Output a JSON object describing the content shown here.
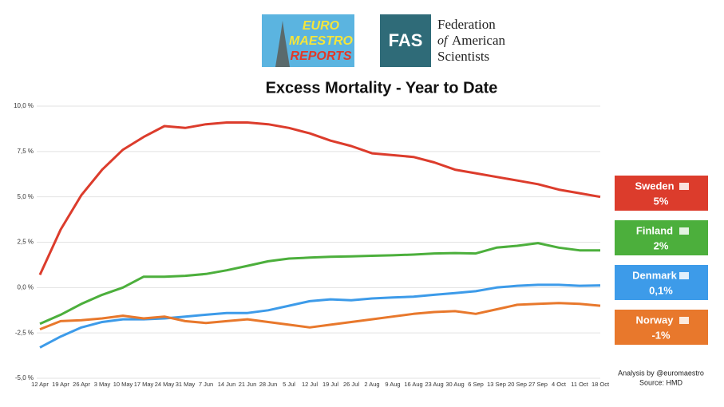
{
  "header": {
    "logo_left": [
      "EURO",
      "MAESTRO",
      "REPORTS"
    ],
    "logo_right_abbr": "FAS",
    "logo_right_name": [
      "Federation",
      "of",
      "American",
      "Scientists"
    ]
  },
  "chart_data": {
    "type": "line",
    "title": "Excess Mortality - Year to Date",
    "categories": [
      "12 Apr",
      "19 Apr",
      "26 Apr",
      "3 May",
      "10 May",
      "17 May",
      "24 May",
      "31 May",
      "7 Jun",
      "14 Jun",
      "21 Jun",
      "28 Jun",
      "5 Jul",
      "12 Jul",
      "19 Jul",
      "26 Jul",
      "2 Aug",
      "9 Aug",
      "16 Aug",
      "23 Aug",
      "30 Aug",
      "6 Sep",
      "13 Sep",
      "20 Sep",
      "27 Sep",
      "4 Oct",
      "11 Oct",
      "18 Oct"
    ],
    "ylim": [
      -5,
      10
    ],
    "yticks": [
      {
        "value": -5,
        "label": "-5,0 %"
      },
      {
        "value": -2.5,
        "label": "-2,5 %"
      },
      {
        "value": 0,
        "label": "0,0 %"
      },
      {
        "value": 2.5,
        "label": "2,5 %"
      },
      {
        "value": 5,
        "label": "5,0 %"
      },
      {
        "value": 7.5,
        "label": "7,5 %"
      },
      {
        "value": 10,
        "label": "10,0 %"
      }
    ],
    "grid": true,
    "series": [
      {
        "name": "Sweden",
        "color": "#dc3c2c",
        "values": [
          0.7,
          3.2,
          5.1,
          6.5,
          7.6,
          8.3,
          8.9,
          8.8,
          9.0,
          9.1,
          9.1,
          9.0,
          8.8,
          8.5,
          8.1,
          7.8,
          7.4,
          7.3,
          7.2,
          6.9,
          6.5,
          6.3,
          6.1,
          5.9,
          5.7,
          5.4,
          5.2,
          5.0
        ],
        "value_labels": [
          null,
          null,
          null,
          null,
          null,
          null,
          null,
          null,
          null,
          null,
          null,
          null,
          null,
          null,
          null,
          null,
          null,
          null,
          null,
          null,
          null,
          null,
          null,
          null,
          null,
          null,
          null,
          "5%"
        ]
      },
      {
        "name": "Finland",
        "color": "#4caf3c",
        "values": [
          -2.0,
          -1.5,
          -0.9,
          -0.4,
          0.0,
          0.6,
          0.6,
          0.65,
          0.75,
          0.95,
          1.2,
          1.45,
          1.6,
          1.65,
          1.7,
          1.72,
          1.75,
          1.78,
          1.82,
          1.88,
          1.9,
          1.88,
          2.2,
          2.3,
          2.45,
          2.2,
          2.05,
          2.05
        ],
        "value_labels": [
          null,
          null,
          null,
          null,
          null,
          null,
          null,
          null,
          null,
          null,
          null,
          null,
          null,
          null,
          null,
          null,
          null,
          null,
          null,
          null,
          null,
          null,
          null,
          null,
          null,
          null,
          null,
          "2%"
        ]
      },
      {
        "name": "Denmark",
        "color": "#3d9be9",
        "values": [
          -3.3,
          -2.7,
          -2.2,
          -1.9,
          -1.75,
          -1.75,
          -1.7,
          -1.6,
          -1.5,
          -1.4,
          -1.4,
          -1.25,
          -1.0,
          -0.75,
          -0.65,
          -0.7,
          -0.6,
          -0.55,
          -0.5,
          -0.4,
          -0.3,
          -0.2,
          0.0,
          0.1,
          0.15,
          0.15,
          0.1,
          0.12
        ],
        "value_labels": [
          null,
          null,
          null,
          null,
          null,
          null,
          null,
          null,
          null,
          null,
          null,
          null,
          null,
          null,
          null,
          null,
          null,
          null,
          null,
          null,
          null,
          null,
          null,
          null,
          null,
          null,
          null,
          "0,1%"
        ]
      },
      {
        "name": "Norway",
        "color": "#e8782c",
        "values": [
          -2.3,
          -1.85,
          -1.8,
          -1.7,
          -1.55,
          -1.7,
          -1.6,
          -1.85,
          -1.95,
          -1.85,
          -1.75,
          -1.9,
          -2.05,
          -2.2,
          -2.05,
          -1.9,
          -1.75,
          -1.6,
          -1.45,
          -1.35,
          -1.3,
          -1.45,
          -1.2,
          -0.95,
          -0.9,
          -0.85,
          -0.9,
          -1.0
        ],
        "value_labels": [
          null,
          null,
          null,
          null,
          null,
          null,
          null,
          null,
          null,
          null,
          null,
          null,
          null,
          null,
          null,
          null,
          null,
          null,
          null,
          null,
          null,
          null,
          null,
          null,
          null,
          null,
          null,
          "-1%"
        ]
      }
    ],
    "annotations": [
      "Analysis by @euromaestro",
      "Source: HMD"
    ]
  }
}
